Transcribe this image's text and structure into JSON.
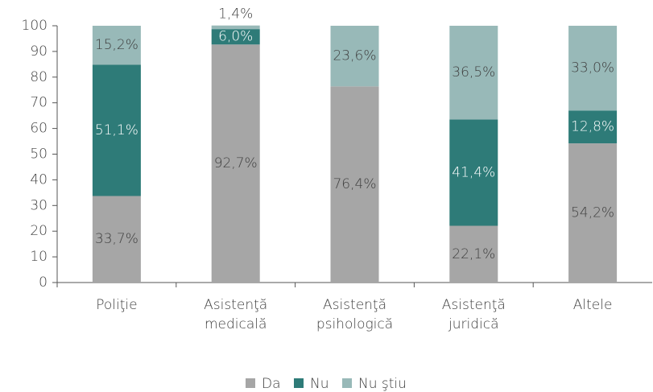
{
  "chart_data": {
    "type": "stacked_bar",
    "categories": [
      "Poliţie",
      "Asistenţă medicală",
      "Asistenţă psihologică",
      "Asistenţă juridică",
      "Altele"
    ],
    "series": [
      {
        "name": "Da",
        "color": "#a6a6a6",
        "values": [
          33.7,
          92.7,
          76.4,
          22.1,
          54.2
        ],
        "value_labels": [
          "33,7%",
          "92,7%",
          "76,4%",
          "22,1%",
          "54,2%"
        ]
      },
      {
        "name": "Nu",
        "color": "#2e7b78",
        "values": [
          51.1,
          6.0,
          null,
          41.4,
          12.8
        ],
        "value_labels": [
          "51,1%",
          "6,0%",
          null,
          "41,4%",
          "12,8%"
        ]
      },
      {
        "name": "Nu ştiu",
        "color": "#98b9b8",
        "values": [
          15.2,
          1.4,
          23.6,
          36.5,
          33.0
        ],
        "value_labels": [
          "15,2%",
          "1,4%",
          "23,6%",
          "36,5%",
          "33,0%"
        ]
      }
    ],
    "ylim": [
      0,
      100
    ],
    "yticks": [
      0,
      10,
      20,
      30,
      40,
      50,
      60,
      70,
      80,
      90,
      100
    ],
    "legend": "bottom"
  }
}
